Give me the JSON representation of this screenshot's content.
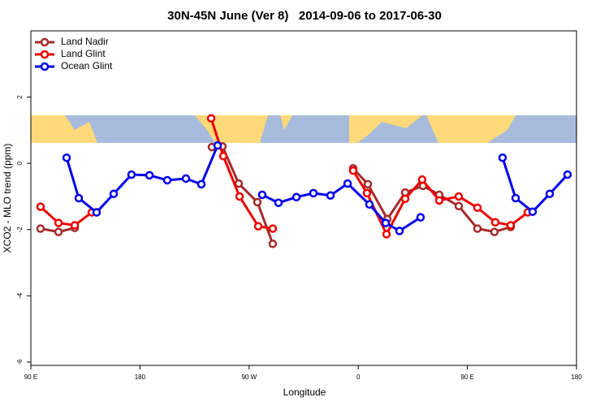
{
  "chart_data": {
    "type": "line",
    "title": "30N-45N June (Ver 8)   2014-09-06 to 2017-06-30",
    "x_label": "Longitude",
    "y_label": "XCO2 - MLO trend (ppm)",
    "xlim": [
      90,
      540
    ],
    "ylim": [
      -6.1,
      4
    ],
    "xticks": [
      {
        "value": 90,
        "label": "90 E"
      },
      180,
      {
        "value": 270,
        "label": "90 W"
      },
      {
        "value": 360,
        "label": "0"
      },
      {
        "value": 450,
        "label": "90 E"
      },
      {
        "value": 540,
        "label": "180"
      }
    ],
    "yticks": [
      -6,
      -4,
      -2,
      0,
      2
    ],
    "legend": "top-left",
    "series": [
      {
        "name": "Land Nadir",
        "color": "#a52a2a",
        "x": [
          98.0,
          112.8,
          126.2,
          null,
          239.3,
          248.0,
          261.4,
          276.8,
          289.5,
          null,
          355.8,
          367.9,
          384.0,
          398.7,
          413.4,
          426.8,
          442.9,
          458.3,
          472.3,
          485.7
        ],
        "values": [
          -1.97,
          -2.07,
          -1.95,
          null,
          0.49,
          0.51,
          -0.61,
          -1.17,
          -2.43,
          null,
          -0.15,
          -0.63,
          -1.68,
          -0.88,
          -0.68,
          -0.95,
          -1.29,
          -1.97,
          -2.07,
          -1.92
        ]
      },
      {
        "name": "Land Glint",
        "color": "#ee0000",
        "x": [
          98.0,
          112.8,
          126.2,
          140.2,
          null,
          238.7,
          248.7,
          262.1,
          277.5,
          289.5,
          null,
          355.8,
          367.2,
          383.3,
          398.7,
          412.7,
          426.8,
          442.9,
          458.3,
          473.0,
          485.7,
          499.8
        ],
        "values": [
          -1.31,
          -1.8,
          -1.87,
          -1.48,
          null,
          1.36,
          0.22,
          -1.0,
          -1.9,
          -1.97,
          null,
          -0.22,
          -0.9,
          -2.14,
          -1.07,
          -0.49,
          -1.12,
          -1.0,
          -1.34,
          -1.78,
          -1.87,
          -1.48
        ]
      },
      {
        "name": "Ocean Glint",
        "color": "#0000ee",
        "x": [
          119.5,
          129.5,
          144.2,
          158.3,
          173.0,
          187.8,
          202.5,
          217.9,
          230.6,
          244.0,
          null,
          280.8,
          294.2,
          309.0,
          323.0,
          337.1,
          351.2,
          369.2,
          382.6,
          394.0,
          411.4,
          null,
          479.0,
          489.8,
          503.8,
          517.9,
          532.6
        ],
        "values": [
          0.17,
          -1.05,
          -1.48,
          -0.92,
          -0.34,
          -0.36,
          -0.51,
          -0.46,
          -0.63,
          0.54,
          null,
          -0.95,
          -1.19,
          -1.02,
          -0.9,
          -0.97,
          -0.61,
          -1.24,
          -1.8,
          -2.04,
          -1.63,
          null,
          0.17,
          -1.05,
          -1.46,
          -0.92,
          -0.34
        ]
      }
    ]
  }
}
